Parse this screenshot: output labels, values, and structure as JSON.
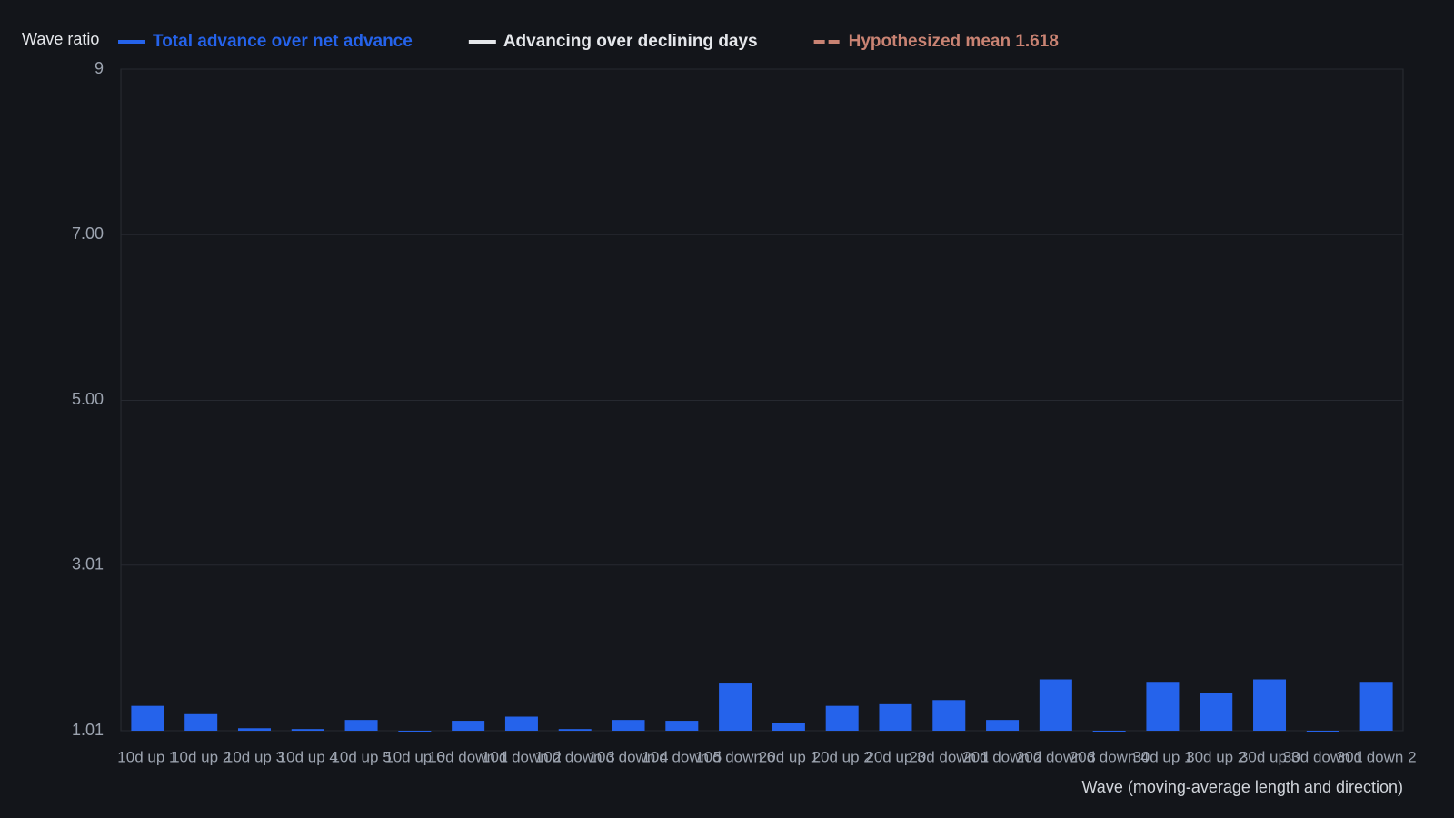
{
  "chart_data": {
    "type": "bar",
    "y_label": "Wave ratio",
    "x_label": "Wave (moving-average length and direction)",
    "categories": [
      "10d up 1",
      "10d up 2",
      "10d up 3",
      "10d up 4",
      "10d up 5",
      "10d up 6",
      "10d down 1",
      "10d down 2",
      "10d down 3",
      "10d down 4",
      "10d down 5",
      "10d down 6",
      "20d up 1",
      "20d up 2",
      "20d up 3",
      "20d down 1",
      "20d down 2",
      "20d down 3",
      "20d down 4",
      "30d up 1",
      "30d up 2",
      "30d up 3",
      "30d down 1",
      "30d down 2"
    ],
    "series": [
      {
        "name": "Total advance over net advance",
        "color": "#2563eb",
        "values": [
          1.31,
          1.21,
          1.04,
          1.03,
          1.14,
          1.0,
          1.13,
          1.18,
          1.03,
          1.14,
          1.13,
          1.58,
          1.1,
          1.31,
          1.33,
          1.38,
          1.14,
          1.63,
          1.0,
          1.6,
          1.47,
          1.63,
          1.0,
          1.6
        ]
      },
      {
        "name": "Advancing over declining days",
        "color": "#e5e7eb"
      },
      {
        "name": "Hypothesized mean 1.618",
        "color": "#c98373",
        "dashed": true
      }
    ],
    "ylim": [
      1.01,
      9
    ],
    "yticks": [
      1.01,
      3.01,
      {
        "value": 5,
        "label": "5.00"
      },
      {
        "value": 7,
        "label": "7.00"
      },
      9
    ],
    "grid": true
  }
}
